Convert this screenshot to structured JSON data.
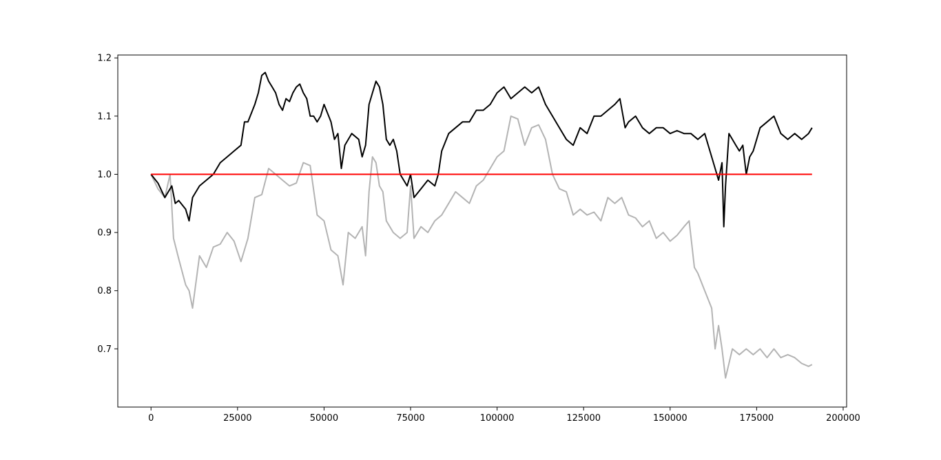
{
  "chart_data": {
    "type": "line",
    "title": "",
    "xlabel": "",
    "ylabel": "",
    "xlim": [
      -9600,
      201000
    ],
    "ylim": [
      0.6,
      1.205
    ],
    "x_ticks": [
      0,
      25000,
      50000,
      75000,
      100000,
      125000,
      150000,
      175000,
      200000
    ],
    "x_tick_labels": [
      "0",
      "25000",
      "50000",
      "75000",
      "100000",
      "125000",
      "150000",
      "175000",
      "200000"
    ],
    "y_ticks": [
      0.7,
      0.8,
      0.9,
      1.0,
      1.1,
      1.2
    ],
    "y_tick_labels": [
      "0.7",
      "0.8",
      "0.9",
      "1.0",
      "1.1",
      "1.2"
    ],
    "grid": false,
    "legend": null,
    "series": [
      {
        "color": "#b3b3b3",
        "x": [
          0,
          2000,
          4000,
          5500,
          6500,
          8000,
          10000,
          11000,
          12000,
          14000,
          16000,
          18000,
          20000,
          22000,
          24000,
          26000,
          28000,
          30000,
          32000,
          34000,
          36000,
          38000,
          40000,
          42000,
          44000,
          46000,
          48000,
          50000,
          52000,
          54000,
          55500,
          57000,
          59000,
          61000,
          62000,
          63000,
          64000,
          65000,
          66000,
          67000,
          68000,
          70000,
          72000,
          74000,
          75000,
          76000,
          78000,
          80000,
          82000,
          84000,
          86000,
          88000,
          90000,
          92000,
          94000,
          96000,
          98000,
          100000,
          102000,
          104000,
          106000,
          108000,
          110000,
          112000,
          114000,
          116000,
          118000,
          120000,
          122000,
          124000,
          126000,
          128000,
          130000,
          132000,
          134000,
          136000,
          138000,
          140000,
          142000,
          144000,
          146000,
          148000,
          150000,
          152000,
          154000,
          155500,
          157000,
          158000,
          160000,
          162000,
          163000,
          164000,
          165000,
          166000,
          168000,
          170000,
          172000,
          174000,
          176000,
          178000,
          180000,
          182000,
          184000,
          186000,
          188000,
          190000,
          191000
        ],
        "values": [
          1.0,
          0.975,
          0.96,
          1.0,
          0.89,
          0.855,
          0.81,
          0.8,
          0.77,
          0.86,
          0.84,
          0.875,
          0.88,
          0.9,
          0.885,
          0.85,
          0.89,
          0.96,
          0.965,
          1.01,
          1.0,
          0.99,
          0.98,
          0.985,
          1.02,
          1.015,
          0.93,
          0.92,
          0.87,
          0.86,
          0.81,
          0.9,
          0.89,
          0.91,
          0.86,
          0.97,
          1.03,
          1.02,
          0.98,
          0.97,
          0.92,
          0.9,
          0.89,
          0.9,
          0.98,
          0.89,
          0.91,
          0.9,
          0.92,
          0.93,
          0.95,
          0.97,
          0.96,
          0.95,
          0.98,
          0.99,
          1.01,
          1.03,
          1.04,
          1.1,
          1.095,
          1.05,
          1.08,
          1.085,
          1.06,
          1.0,
          0.975,
          0.97,
          0.93,
          0.94,
          0.93,
          0.935,
          0.92,
          0.96,
          0.95,
          0.96,
          0.93,
          0.925,
          0.91,
          0.92,
          0.89,
          0.9,
          0.885,
          0.895,
          0.91,
          0.92,
          0.84,
          0.83,
          0.8,
          0.77,
          0.7,
          0.74,
          0.7,
          0.65,
          0.7,
          0.69,
          0.7,
          0.69,
          0.7,
          0.685,
          0.7,
          0.685,
          0.69,
          0.685,
          0.675,
          0.67,
          0.673
        ]
      },
      {
        "color": "#000000",
        "x": [
          0,
          2000,
          4000,
          6000,
          7000,
          8000,
          10000,
          11000,
          12000,
          13000,
          14000,
          16000,
          18000,
          20000,
          22000,
          24000,
          26000,
          27000,
          28000,
          30000,
          31000,
          32000,
          33000,
          34000,
          35000,
          36000,
          37000,
          38000,
          39000,
          40000,
          41000,
          42000,
          43000,
          44000,
          45000,
          46000,
          47000,
          48000,
          49000,
          50000,
          52000,
          53000,
          54000,
          55000,
          56000,
          58000,
          60000,
          61000,
          62000,
          63000,
          64000,
          65000,
          66000,
          67000,
          68000,
          69000,
          70000,
          71000,
          72000,
          73000,
          74000,
          75000,
          76000,
          78000,
          80000,
          82000,
          83000,
          84000,
          86000,
          88000,
          90000,
          92000,
          94000,
          96000,
          98000,
          100000,
          102000,
          104000,
          106000,
          108000,
          110000,
          112000,
          114000,
          116000,
          118000,
          120000,
          122000,
          124000,
          126000,
          128000,
          130000,
          132000,
          134000,
          135500,
          137000,
          138000,
          140000,
          142000,
          144000,
          146000,
          148000,
          150000,
          152000,
          154000,
          156000,
          158000,
          160000,
          162000,
          163000,
          164000,
          165000,
          165500,
          166000,
          167000,
          168000,
          169000,
          170000,
          171000,
          172000,
          173000,
          174000,
          176000,
          178000,
          180000,
          182000,
          184000,
          186000,
          188000,
          190000,
          191000
        ],
        "values": [
          1.0,
          0.985,
          0.96,
          0.98,
          0.95,
          0.955,
          0.94,
          0.92,
          0.96,
          0.97,
          0.98,
          0.99,
          1.0,
          1.02,
          1.03,
          1.04,
          1.05,
          1.09,
          1.09,
          1.12,
          1.14,
          1.17,
          1.175,
          1.16,
          1.15,
          1.14,
          1.12,
          1.11,
          1.13,
          1.125,
          1.14,
          1.15,
          1.155,
          1.14,
          1.13,
          1.1,
          1.1,
          1.09,
          1.1,
          1.12,
          1.09,
          1.06,
          1.07,
          1.01,
          1.05,
          1.07,
          1.06,
          1.03,
          1.05,
          1.12,
          1.14,
          1.16,
          1.15,
          1.12,
          1.06,
          1.05,
          1.06,
          1.04,
          1.0,
          0.99,
          0.98,
          1.0,
          0.96,
          0.975,
          0.99,
          0.98,
          1.0,
          1.04,
          1.07,
          1.08,
          1.09,
          1.09,
          1.11,
          1.11,
          1.12,
          1.14,
          1.15,
          1.13,
          1.14,
          1.15,
          1.14,
          1.15,
          1.12,
          1.1,
          1.08,
          1.06,
          1.05,
          1.08,
          1.07,
          1.1,
          1.1,
          1.11,
          1.12,
          1.13,
          1.08,
          1.09,
          1.1,
          1.08,
          1.07,
          1.08,
          1.08,
          1.07,
          1.075,
          1.07,
          1.07,
          1.06,
          1.07,
          1.03,
          1.01,
          0.99,
          1.02,
          0.91,
          0.98,
          1.07,
          1.06,
          1.05,
          1.04,
          1.05,
          1.0,
          1.03,
          1.04,
          1.08,
          1.09,
          1.1,
          1.07,
          1.06,
          1.07,
          1.06,
          1.07,
          1.08
        ]
      },
      {
        "color": "#ff0000",
        "x": [
          0,
          191000
        ],
        "values": [
          1.0,
          1.0
        ]
      }
    ]
  }
}
